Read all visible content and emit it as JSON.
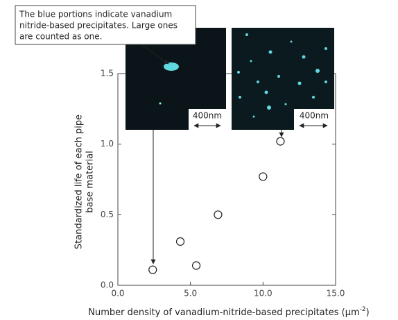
{
  "chart_data": {
    "type": "scatter",
    "xlabel": "Number density of vanadium-nitride-based precipitates (μm",
    "xlabel_sup": "-2",
    "xlabel_end": ")",
    "ylabel": [
      "Standardized life of each pipe",
      "base material"
    ],
    "x": [
      2.4,
      4.3,
      5.4,
      6.9,
      10.0,
      11.2
    ],
    "values": [
      0.11,
      0.31,
      0.14,
      0.5,
      0.77,
      1.02
    ],
    "color": "#222222",
    "xlim": [
      0,
      15
    ],
    "ylim": [
      0,
      1.5
    ],
    "xticks": [
      {
        "value": 0,
        "label": "0.0"
      },
      {
        "value": 5,
        "label": "5.0"
      },
      {
        "value": 10,
        "label": "10.0"
      },
      {
        "value": 15,
        "label": "15.0"
      }
    ],
    "yticks": [
      {
        "value": 0,
        "label": "0.0"
      },
      {
        "value": 0.5,
        "label": "0.5"
      },
      {
        "value": 1,
        "label": "1.0"
      },
      {
        "value": 1.5,
        "label": "1.5"
      }
    ],
    "callout": [
      "The blue portions indicate vanadium",
      "nitride-based precipitates. Large ones",
      "are counted as one."
    ],
    "scale_labels": [
      "400nm",
      "400nm"
    ]
  }
}
